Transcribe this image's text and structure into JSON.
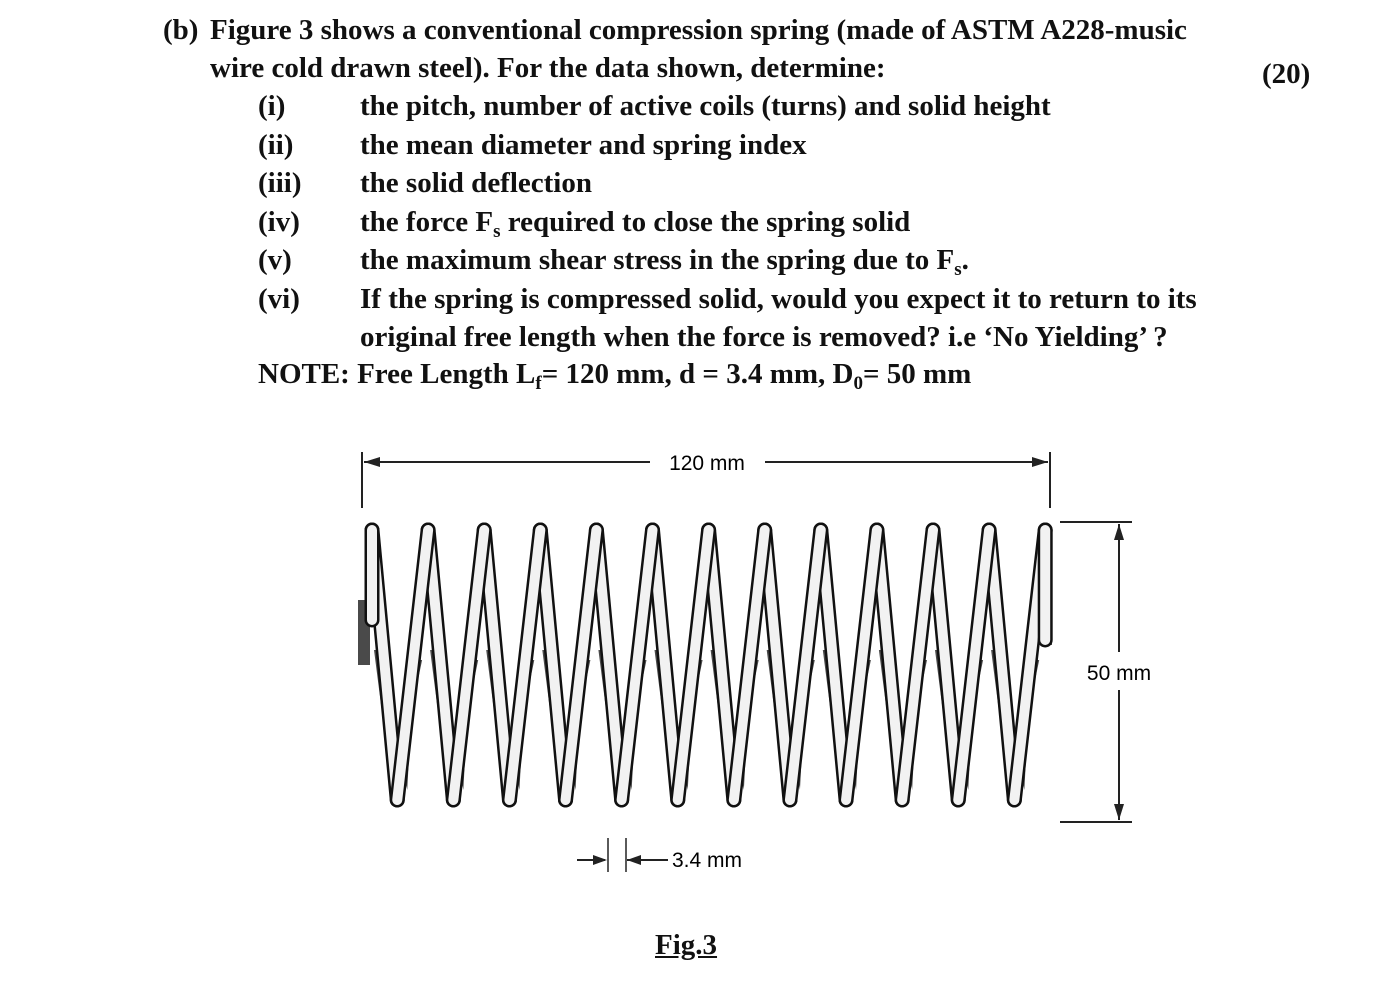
{
  "question": {
    "label": "(b)",
    "intro_lines": [
      "Figure 3 shows a conventional compression spring (made of ASTM A228-music",
      "wire cold drawn steel). For the data shown, determine:"
    ],
    "marks": "(20)",
    "items": [
      {
        "label": "(i)",
        "lines": [
          [
            "the pitch, number of active coils (turns) and solid height"
          ]
        ]
      },
      {
        "label": "(ii)",
        "lines": [
          [
            "the mean diameter and spring index"
          ]
        ]
      },
      {
        "label": "(iii)",
        "lines": [
          [
            "the solid deflection"
          ]
        ]
      },
      {
        "label": "(iv)",
        "lines": [
          [
            "the force F",
            "s",
            " required to close the spring solid"
          ]
        ]
      },
      {
        "label": "(v)",
        "lines": [
          [
            "the maximum shear stress in the spring due to F",
            "s",
            "."
          ]
        ]
      },
      {
        "label": "(vi)",
        "lines": [
          [
            "If the spring is compressed solid, would you expect it to return to its"
          ],
          [
            "original free length when the force is removed? i.e ‘No Yielding’ ?"
          ]
        ]
      }
    ],
    "note": [
      "NOTE: Free Length L",
      "f",
      "= 120 mm, d = 3.4 mm, D",
      "0",
      "= 50 mm"
    ]
  },
  "figure": {
    "length_label": "120 mm",
    "diameter_label": "50 mm",
    "wire_label": "3.4 mm",
    "caption": "Fig.3"
  }
}
